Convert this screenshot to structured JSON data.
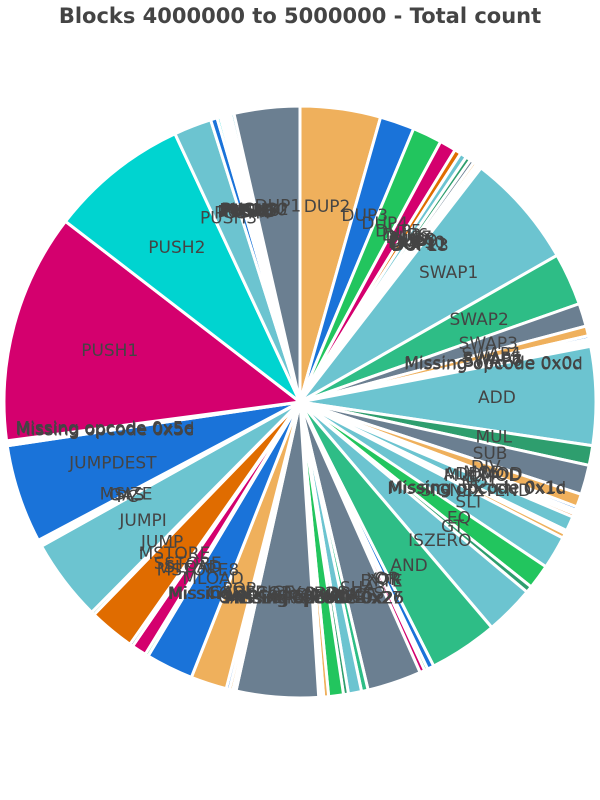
{
  "chart_data": {
    "type": "pie",
    "title": "Blocks 4000000 to 5000000 - Total count",
    "slices": [
      {
        "label": "DUP2",
        "value": 4.9,
        "color": "#efb05c"
      },
      {
        "label": "DUP3",
        "value": 2.1,
        "color": "#1a73d9"
      },
      {
        "label": "DUP4",
        "value": 1.8,
        "color": "#22c55e"
      },
      {
        "label": "DUP5",
        "value": 1.0,
        "color": "#d4006e"
      },
      {
        "label": "DUP6",
        "value": 0.4,
        "color": "#e06c00"
      },
      {
        "label": "DUP7",
        "value": 0.4,
        "color": "#6cc4d0"
      },
      {
        "label": "DUP8",
        "value": 0.3,
        "color": "#2e9e6e"
      },
      {
        "label": "DUP9",
        "value": 0.25,
        "color": "#6b7f91"
      },
      {
        "label": "DUP10",
        "value": 0.2,
        "color": "#efb05c"
      },
      {
        "label": "DUP11",
        "value": 0.15,
        "color": "#1a73d9"
      },
      {
        "label": "DUP12",
        "value": 0.1,
        "color": "#22c55e"
      },
      {
        "label": "DUP13",
        "value": 0.1,
        "color": "#d4006e"
      },
      {
        "label": "SWAP1",
        "value": 7.0,
        "color": "#6cc4d0"
      },
      {
        "label": "SWAP2",
        "value": 3.2,
        "color": "#2ebd86"
      },
      {
        "label": "SWAP3",
        "value": 1.4,
        "color": "#6b7f91"
      },
      {
        "label": "SWAP4",
        "value": 0.6,
        "color": "#efb05c"
      },
      {
        "label": "SWAP5",
        "value": 0.2,
        "color": "#1a73d9"
      },
      {
        "label": "SWAP6",
        "value": 0.15,
        "color": "#22c55e"
      },
      {
        "label": "SWAP7",
        "value": 0.1,
        "color": "#d4006e"
      },
      {
        "label": "Missing opcode 0x0c",
        "value": 0.1,
        "color": "#e06c00"
      },
      {
        "label": "Missing opcode 0x0d",
        "value": 0.1,
        "color": "#6cc4d0"
      },
      {
        "label": "ADD",
        "value": 6.0,
        "color": "#6cc4d0"
      },
      {
        "label": "MUL",
        "value": 1.2,
        "color": "#2e9e6e"
      },
      {
        "label": "SUB",
        "value": 1.8,
        "color": "#6b7f91"
      },
      {
        "label": "DIV",
        "value": 0.8,
        "color": "#efb05c"
      },
      {
        "label": "MOD",
        "value": 0.2,
        "color": "#1a73d9"
      },
      {
        "label": "ADDMOD",
        "value": 0.15,
        "color": "#22c55e"
      },
      {
        "label": "MULMOD",
        "value": 0.1,
        "color": "#d4006e"
      },
      {
        "label": "EXP",
        "value": 0.2,
        "color": "#e06c00"
      },
      {
        "label": "NOT",
        "value": 0.9,
        "color": "#6cc4d0"
      },
      {
        "label": "Missing opcode 0x1c",
        "value": 0.1,
        "color": "#2ebd86"
      },
      {
        "label": "Missing opcode 0x1d",
        "value": 0.1,
        "color": "#6b7f91"
      },
      {
        "label": "SIGNEXTEND",
        "value": 0.3,
        "color": "#efb05c"
      },
      {
        "label": "SLT",
        "value": 2.0,
        "color": "#6cc4d0"
      },
      {
        "label": "EQ",
        "value": 1.5,
        "color": "#22c55e"
      },
      {
        "label": "GT",
        "value": 0.4,
        "color": "#2e9e6e"
      },
      {
        "label": "ISZERO",
        "value": 3.0,
        "color": "#6cc4d0"
      },
      {
        "label": "AND",
        "value": 4.2,
        "color": "#2ebd86"
      },
      {
        "label": "OR",
        "value": 0.4,
        "color": "#1a73d9"
      },
      {
        "label": "XOR",
        "value": 0.2,
        "color": "#22c55e"
      },
      {
        "label": "BYTE",
        "value": 0.3,
        "color": "#d4006e"
      },
      {
        "label": "SHA3",
        "value": 3.3,
        "color": "#6b7f91"
      },
      {
        "label": "ADDRESS",
        "value": 0.4,
        "color": "#2ebd86"
      },
      {
        "label": "BALANCE",
        "value": 0.8,
        "color": "#6cc4d0"
      },
      {
        "label": "ORIGIN",
        "value": 0.3,
        "color": "#2e9e6e"
      },
      {
        "label": "CALLER",
        "value": 0.9,
        "color": "#22c55e"
      },
      {
        "label": "CALLVALUE",
        "value": 0.3,
        "color": "#efb05c"
      },
      {
        "label": "Missing opcode 0x25",
        "value": 0.1,
        "color": "#1a73d9"
      },
      {
        "label": "Missing opcode 0x26",
        "value": 0.1,
        "color": "#d4006e"
      },
      {
        "label": "Missing opcode 0x27",
        "value": 0.1,
        "color": "#e06c00"
      },
      {
        "label": "CALLDATALOAD",
        "value": 5.0,
        "color": "#6b7f91"
      },
      {
        "label": "Missing opcode 0x2e",
        "value": 0.1,
        "color": "#6cc4d0"
      },
      {
        "label": "Missing opcode 0x2f",
        "value": 0.1,
        "color": "#2ebd86"
      },
      {
        "label": "CODECOPY",
        "value": 0.2,
        "color": "#efb05c"
      },
      {
        "label": "GASPRICE",
        "value": 0.2,
        "color": "#1a73d9"
      },
      {
        "label": "POP",
        "value": 2.2,
        "color": "#efb05c"
      },
      {
        "label": "MLOAD",
        "value": 2.9,
        "color": "#1a73d9"
      },
      {
        "label": "MSTORE8",
        "value": 0.2,
        "color": "#22c55e"
      },
      {
        "label": "SLOAD",
        "value": 0.9,
        "color": "#d4006e"
      },
      {
        "label": "SSTORE",
        "value": 0.2,
        "color": "#6b7f91"
      },
      {
        "label": "MSTORE",
        "value": 2.8,
        "color": "#e06c00"
      },
      {
        "label": "JUMP",
        "value": 0.2,
        "color": "#2e9e6e"
      },
      {
        "label": "JUMPI",
        "value": 5.0,
        "color": "#6cc4d0"
      },
      {
        "label": "PC",
        "value": 0.15,
        "color": "#efb05c"
      },
      {
        "label": "GAS",
        "value": 0.15,
        "color": "#1a73d9"
      },
      {
        "label": "MSIZE",
        "value": 0.1,
        "color": "#22c55e"
      },
      {
        "label": "JUMPDEST",
        "value": 6.0,
        "color": "#1a73d9"
      },
      {
        "label": "Missing opcode 0x5c",
        "value": 0.1,
        "color": "#d4006e"
      },
      {
        "label": "Missing opcode 0x5d",
        "value": 0.1,
        "color": "#e06c00"
      },
      {
        "label": "Missing opcode 0x5e",
        "value": 0.1,
        "color": "#6cc4d0"
      },
      {
        "label": "PUSH1",
        "value": 14.0,
        "color": "#d4006e"
      },
      {
        "label": "PUSH2",
        "value": 8.5,
        "color": "#00d4d0"
      },
      {
        "label": "PUSH3",
        "value": 2.3,
        "color": "#6cc4d0"
      },
      {
        "label": "PUSH4",
        "value": 0.4,
        "color": "#1a73d9"
      },
      {
        "label": "PUSH5",
        "value": 0.2,
        "color": "#00d4d0"
      },
      {
        "label": "PUSH6",
        "value": 0.15,
        "color": "#2ebd86"
      },
      {
        "label": "PUSH7",
        "value": 0.15,
        "color": "#efb05c"
      },
      {
        "label": "PUSH8",
        "value": 0.15,
        "color": "#22c55e"
      },
      {
        "label": "PUSH9",
        "value": 0.1,
        "color": "#d4006e"
      },
      {
        "label": "PUSH10",
        "value": 0.1,
        "color": "#e06c00"
      },
      {
        "label": "PUSH32",
        "value": 0.2,
        "color": "#6cc4d0"
      },
      {
        "label": "DUP1",
        "value": 4.0,
        "color": "#6b7f91"
      }
    ]
  }
}
